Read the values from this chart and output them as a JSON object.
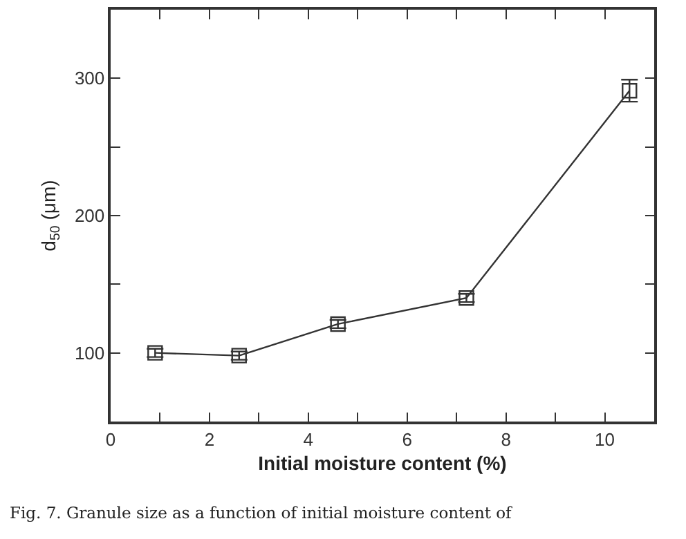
{
  "chart_data": {
    "type": "line",
    "xlabel": "Initial moisture content (%)",
    "ylabel": "d$_{50}$ (μm)",
    "x": [
      0.9,
      2.6,
      4.6,
      7.2,
      10.5
    ],
    "series": [
      {
        "color": "#333333",
        "values": [
          100,
          98,
          121,
          140,
          291
        ],
        "errors": [
          3,
          3,
          3,
          3,
          8
        ]
      }
    ],
    "xlim": [
      0,
      11
    ],
    "xticks": [
      0,
      {
        "value": 1,
        "label": null
      },
      2,
      {
        "value": 3,
        "label": null
      },
      4,
      {
        "value": 5,
        "label": null
      },
      6,
      {
        "value": 7,
        "label": null
      },
      8,
      {
        "value": 9,
        "label": null
      },
      10
    ],
    "ylim": [
      50,
      350
    ],
    "yticks": [
      {
        "value": 50,
        "label": null
      },
      100,
      {
        "value": 150,
        "label": null
      },
      200,
      {
        "value": 250,
        "label": null
      },
      300,
      {
        "value": 350,
        "label": null
      }
    ],
    "grid": false,
    "marker": "square",
    "line_style": "solid",
    "annotations": [
      "Fig. 7. Granule size as a function of initial moisture content of"
    ]
  }
}
